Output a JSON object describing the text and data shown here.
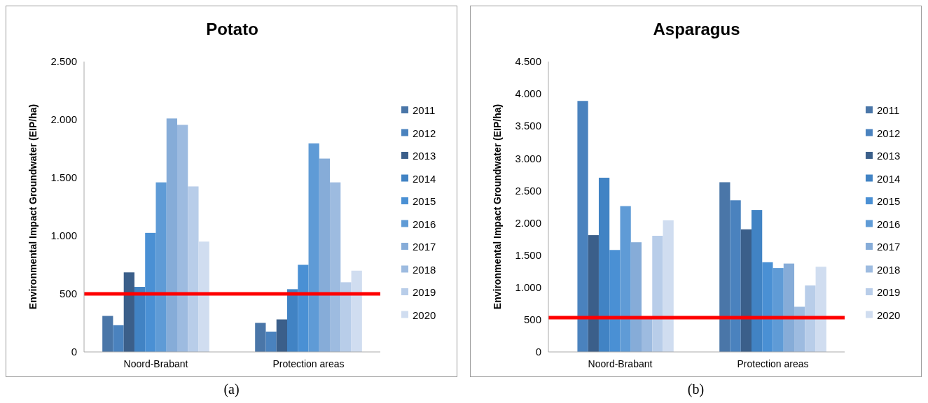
{
  "chart_data": [
    {
      "type": "bar",
      "title": "Potato",
      "ylabel": "Environmental Impact Groundwater (EIP/ha)",
      "categories": [
        "Noord-Brabant",
        "Protection areas"
      ],
      "ylim": [
        0,
        2500
      ],
      "yticks": [
        {
          "value": 0,
          "label": "0"
        },
        {
          "value": 500,
          "label": "500"
        },
        {
          "value": 1000,
          "label": "1.000"
        },
        {
          "value": 1500,
          "label": "1.500"
        },
        {
          "value": 2000,
          "label": "2.000"
        },
        {
          "value": 2500,
          "label": "2.500"
        }
      ],
      "grid": false,
      "legend": "right",
      "annotations": [
        "(a)"
      ],
      "ref_lines": [
        {
          "axis": "y",
          "value": 500,
          "color": "#ff0000"
        }
      ],
      "series": [
        {
          "name": "2011",
          "color": "#4a76a8",
          "values": [
            310,
            250
          ]
        },
        {
          "name": "2012",
          "color": "#4a82be",
          "values": [
            230,
            175
          ]
        },
        {
          "name": "2013",
          "color": "#3b5f8a",
          "values": [
            685,
            280
          ]
        },
        {
          "name": "2014",
          "color": "#4183c4",
          "values": [
            560,
            540
          ]
        },
        {
          "name": "2015",
          "color": "#4a90d4",
          "values": [
            1025,
            750
          ]
        },
        {
          "name": "2016",
          "color": "#5f9bd6",
          "values": [
            1460,
            1795
          ]
        },
        {
          "name": "2017",
          "color": "#86acd8",
          "values": [
            2010,
            1665
          ]
        },
        {
          "name": "2018",
          "color": "#9dbbe0",
          "values": [
            1955,
            1460
          ]
        },
        {
          "name": "2019",
          "color": "#b8cde9",
          "values": [
            1425,
            600
          ]
        },
        {
          "name": "2020",
          "color": "#d0ddf0",
          "values": [
            950,
            700
          ]
        }
      ]
    },
    {
      "type": "bar",
      "title": "Asparagus",
      "ylabel": "Environmental Impact Groundwater (EIP/ha)",
      "categories": [
        "Noord-Brabant",
        "Protection areas"
      ],
      "ylim": [
        0,
        4500
      ],
      "yticks": [
        {
          "value": 0,
          "label": "0"
        },
        {
          "value": 500,
          "label": "500"
        },
        {
          "value": 1000,
          "label": "1.000"
        },
        {
          "value": 1500,
          "label": "1.500"
        },
        {
          "value": 2000,
          "label": "2.000"
        },
        {
          "value": 2500,
          "label": "2.500"
        },
        {
          "value": 3000,
          "label": "3.000"
        },
        {
          "value": 3500,
          "label": "3.500"
        },
        {
          "value": 4000,
          "label": "4.000"
        },
        {
          "value": 4500,
          "label": "4.500"
        }
      ],
      "grid": false,
      "legend": "right",
      "annotations": [
        "(b)"
      ],
      "ref_lines": [
        {
          "axis": "y",
          "value": 530,
          "color": "#ff0000"
        }
      ],
      "series": [
        {
          "name": "2011",
          "color": "#4a76a8",
          "values": [
            null,
            2630
          ]
        },
        {
          "name": "2012",
          "color": "#4a82be",
          "values": [
            3890,
            2350
          ]
        },
        {
          "name": "2013",
          "color": "#3b5f8a",
          "values": [
            1810,
            1900
          ]
        },
        {
          "name": "2014",
          "color": "#4183c4",
          "values": [
            2700,
            2200
          ]
        },
        {
          "name": "2015",
          "color": "#4a90d4",
          "values": [
            1580,
            1390
          ]
        },
        {
          "name": "2016",
          "color": "#5f9bd6",
          "values": [
            2260,
            1300
          ]
        },
        {
          "name": "2017",
          "color": "#86acd8",
          "values": [
            1700,
            1370
          ]
        },
        {
          "name": "2018",
          "color": "#9dbbe0",
          "values": [
            520,
            700
          ]
        },
        {
          "name": "2019",
          "color": "#b8cde9",
          "values": [
            1800,
            1030
          ]
        },
        {
          "name": "2020",
          "color": "#d0ddf0",
          "values": [
            2040,
            1320
          ]
        }
      ]
    }
  ]
}
